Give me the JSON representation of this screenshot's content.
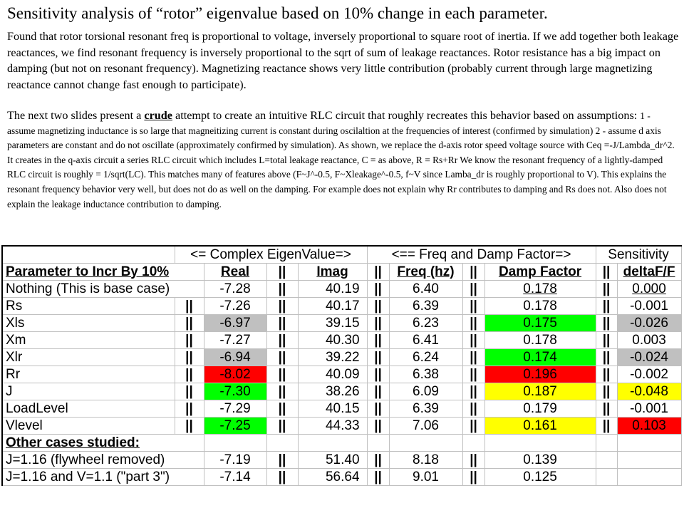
{
  "title": "Sensitivity analysis of “rotor” eigenvalue based on 10% change in each parameter.",
  "paragraph1": "Found that rotor torsional resonant freq is proportional to voltage, inversely proportional to square root of inertia.  If we add together both leakage reactances, we find resonant  frequency is inversely proportional to the sqrt of sum of leakage reactances.    Rotor resistance has a big impact on damping (but not on resonant frequency).    Magnetizing reactance shows very little contribution  (probably current through large magnetizing reactance cannot change fast enough to participate).",
  "paragraph2": {
    "lead": "The next two slides present a ",
    "emph": "crude",
    "mid": " attempt to create an intuitive RLC circuit that roughly recreates this behavior based on assumptions: ",
    "rest": " 1 - assume magnetizing inductance is so large that magneitizing current is constant during oscilaltion at the frequencies of interest (confirmed by simulation) 2 - assume d axis parameters are constant and do not oscillate (approximately confirmed by simulation).  As shown, we replace the d-axis rotor speed voltage source with Ceq =-J/Lambda_dr^2.  It creates in the q-axis circuit a series RLC circuit which includes L=total leakage reactance, C = as above, R = Rs+Rr  We know the resonant frequency of a lightly-damped  RLC circuit is roughly = 1/sqrt(LC).  This matches many of features above (F~J^-0.5, F~Xleakage^-0.5,  f~V since Lamba_dr is roughly proportional to V).   This explains the resonant frequency behavior very well, but does not do as well on the damping.  For example does not explain why Rr contributes to damping and Rs does not.  Also does not explain the leakage inductance contribution to damping."
  },
  "table": {
    "group_headers": {
      "complex": "<= Complex EigenValue=>",
      "freqdamp": "<== Freq and Damp Factor=>",
      "sensitivity": "Sensitivity"
    },
    "column_headers": {
      "param": "Parameter to Incr By 10%",
      "real": "Real",
      "imag": "Imag",
      "freq": "Freq (hz)",
      "damp": "Damp Factor",
      "delta": "deltaF/F"
    },
    "separator": "||",
    "rows": [
      {
        "param": "Nothing (This is base case)",
        "real": "-7.28",
        "imag": "40.19",
        "freq": "6.40",
        "damp": "0.178",
        "delta": "0.000"
      },
      {
        "param": "Rs",
        "real": "-7.26",
        "imag": "40.17",
        "freq": "6.39",
        "damp": "0.178",
        "delta": "-0.001"
      },
      {
        "param": "Xls",
        "real": "-6.97",
        "imag": "39.15",
        "freq": "6.23",
        "damp": "0.175",
        "delta": "-0.026"
      },
      {
        "param": "Xm",
        "real": "-7.27",
        "imag": "40.30",
        "freq": "6.41",
        "damp": "0.178",
        "delta": "0.003"
      },
      {
        "param": "Xlr",
        "real": "-6.94",
        "imag": "39.22",
        "freq": "6.24",
        "damp": "0.174",
        "delta": "-0.024"
      },
      {
        "param": "Rr",
        "real": "-8.02",
        "imag": "40.09",
        "freq": "6.38",
        "damp": "0.196",
        "delta": "-0.002"
      },
      {
        "param": "J",
        "real": "-7.30",
        "imag": "38.26",
        "freq": "6.09",
        "damp": "0.187",
        "delta": "-0.048"
      },
      {
        "param": "LoadLevel",
        "real": "-7.29",
        "imag": "40.15",
        "freq": "6.39",
        "damp": "0.179",
        "delta": "-0.001"
      },
      {
        "param": "Vlevel",
        "real": "-7.25",
        "imag": "44.33",
        "freq": "7.06",
        "damp": "0.161",
        "delta": "0.103"
      }
    ],
    "other_header": "Other cases studied:",
    "other_rows": [
      {
        "param": "J=1.16 (flywheel removed)",
        "real": "-7.19",
        "imag": "51.40",
        "freq": "8.18",
        "damp": "0.139"
      },
      {
        "param": "J=1.16 and V=1.1 (\"part 3\")",
        "real": "-7.14",
        "imag": "56.64",
        "freq": "9.01",
        "damp": "0.125"
      }
    ]
  },
  "colors": {
    "gray": "#c0c0c0",
    "green": "#00ff00",
    "red": "#ff0000",
    "yellow": "#ffff00"
  }
}
